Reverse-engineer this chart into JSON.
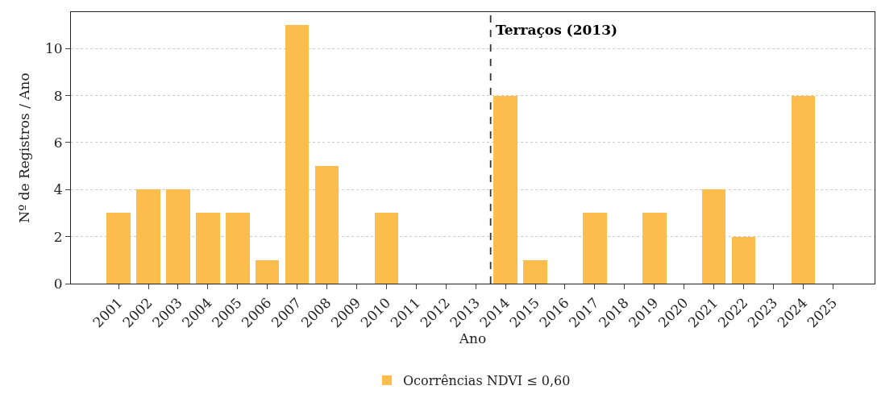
{
  "chart_data": {
    "type": "bar",
    "xlabel": "Ano",
    "ylabel": "Nº de Registros / Ano",
    "x": [
      2001,
      2002,
      2003,
      2004,
      2005,
      2006,
      2007,
      2008,
      2009,
      2010,
      2011,
      2012,
      2013,
      2014,
      2015,
      2016,
      2017,
      2018,
      2019,
      2020,
      2021,
      2022,
      2023,
      2024,
      2025
    ],
    "series": [
      {
        "name": "Ocorrências NDVI ≤ 0,60",
        "color": "#fdbd4d",
        "values": [
          3,
          4,
          4,
          3,
          3,
          1,
          11,
          5,
          0,
          3,
          0,
          0,
          0,
          8,
          1,
          0,
          3,
          0,
          3,
          0,
          4,
          2,
          0,
          8,
          0
        ]
      }
    ],
    "xlim": [
      1999.4,
      2026.4
    ],
    "xticks": [
      2001,
      2002,
      2003,
      2004,
      2005,
      2006,
      2007,
      2008,
      2009,
      2010,
      2011,
      2012,
      2013,
      2014,
      2015,
      2016,
      2017,
      2018,
      2019,
      2020,
      2021,
      2022,
      2023,
      2024,
      2025
    ],
    "ylim": [
      0,
      11.55
    ],
    "yticks": [
      0,
      2,
      4,
      6,
      8,
      10
    ],
    "ref_lines": [
      {
        "axis": "x",
        "value": 2013.5,
        "label": "Terraços (2013)",
        "color": "#333333",
        "line_style": "dashed"
      }
    ],
    "grid": "y",
    "legend": "bottom"
  }
}
